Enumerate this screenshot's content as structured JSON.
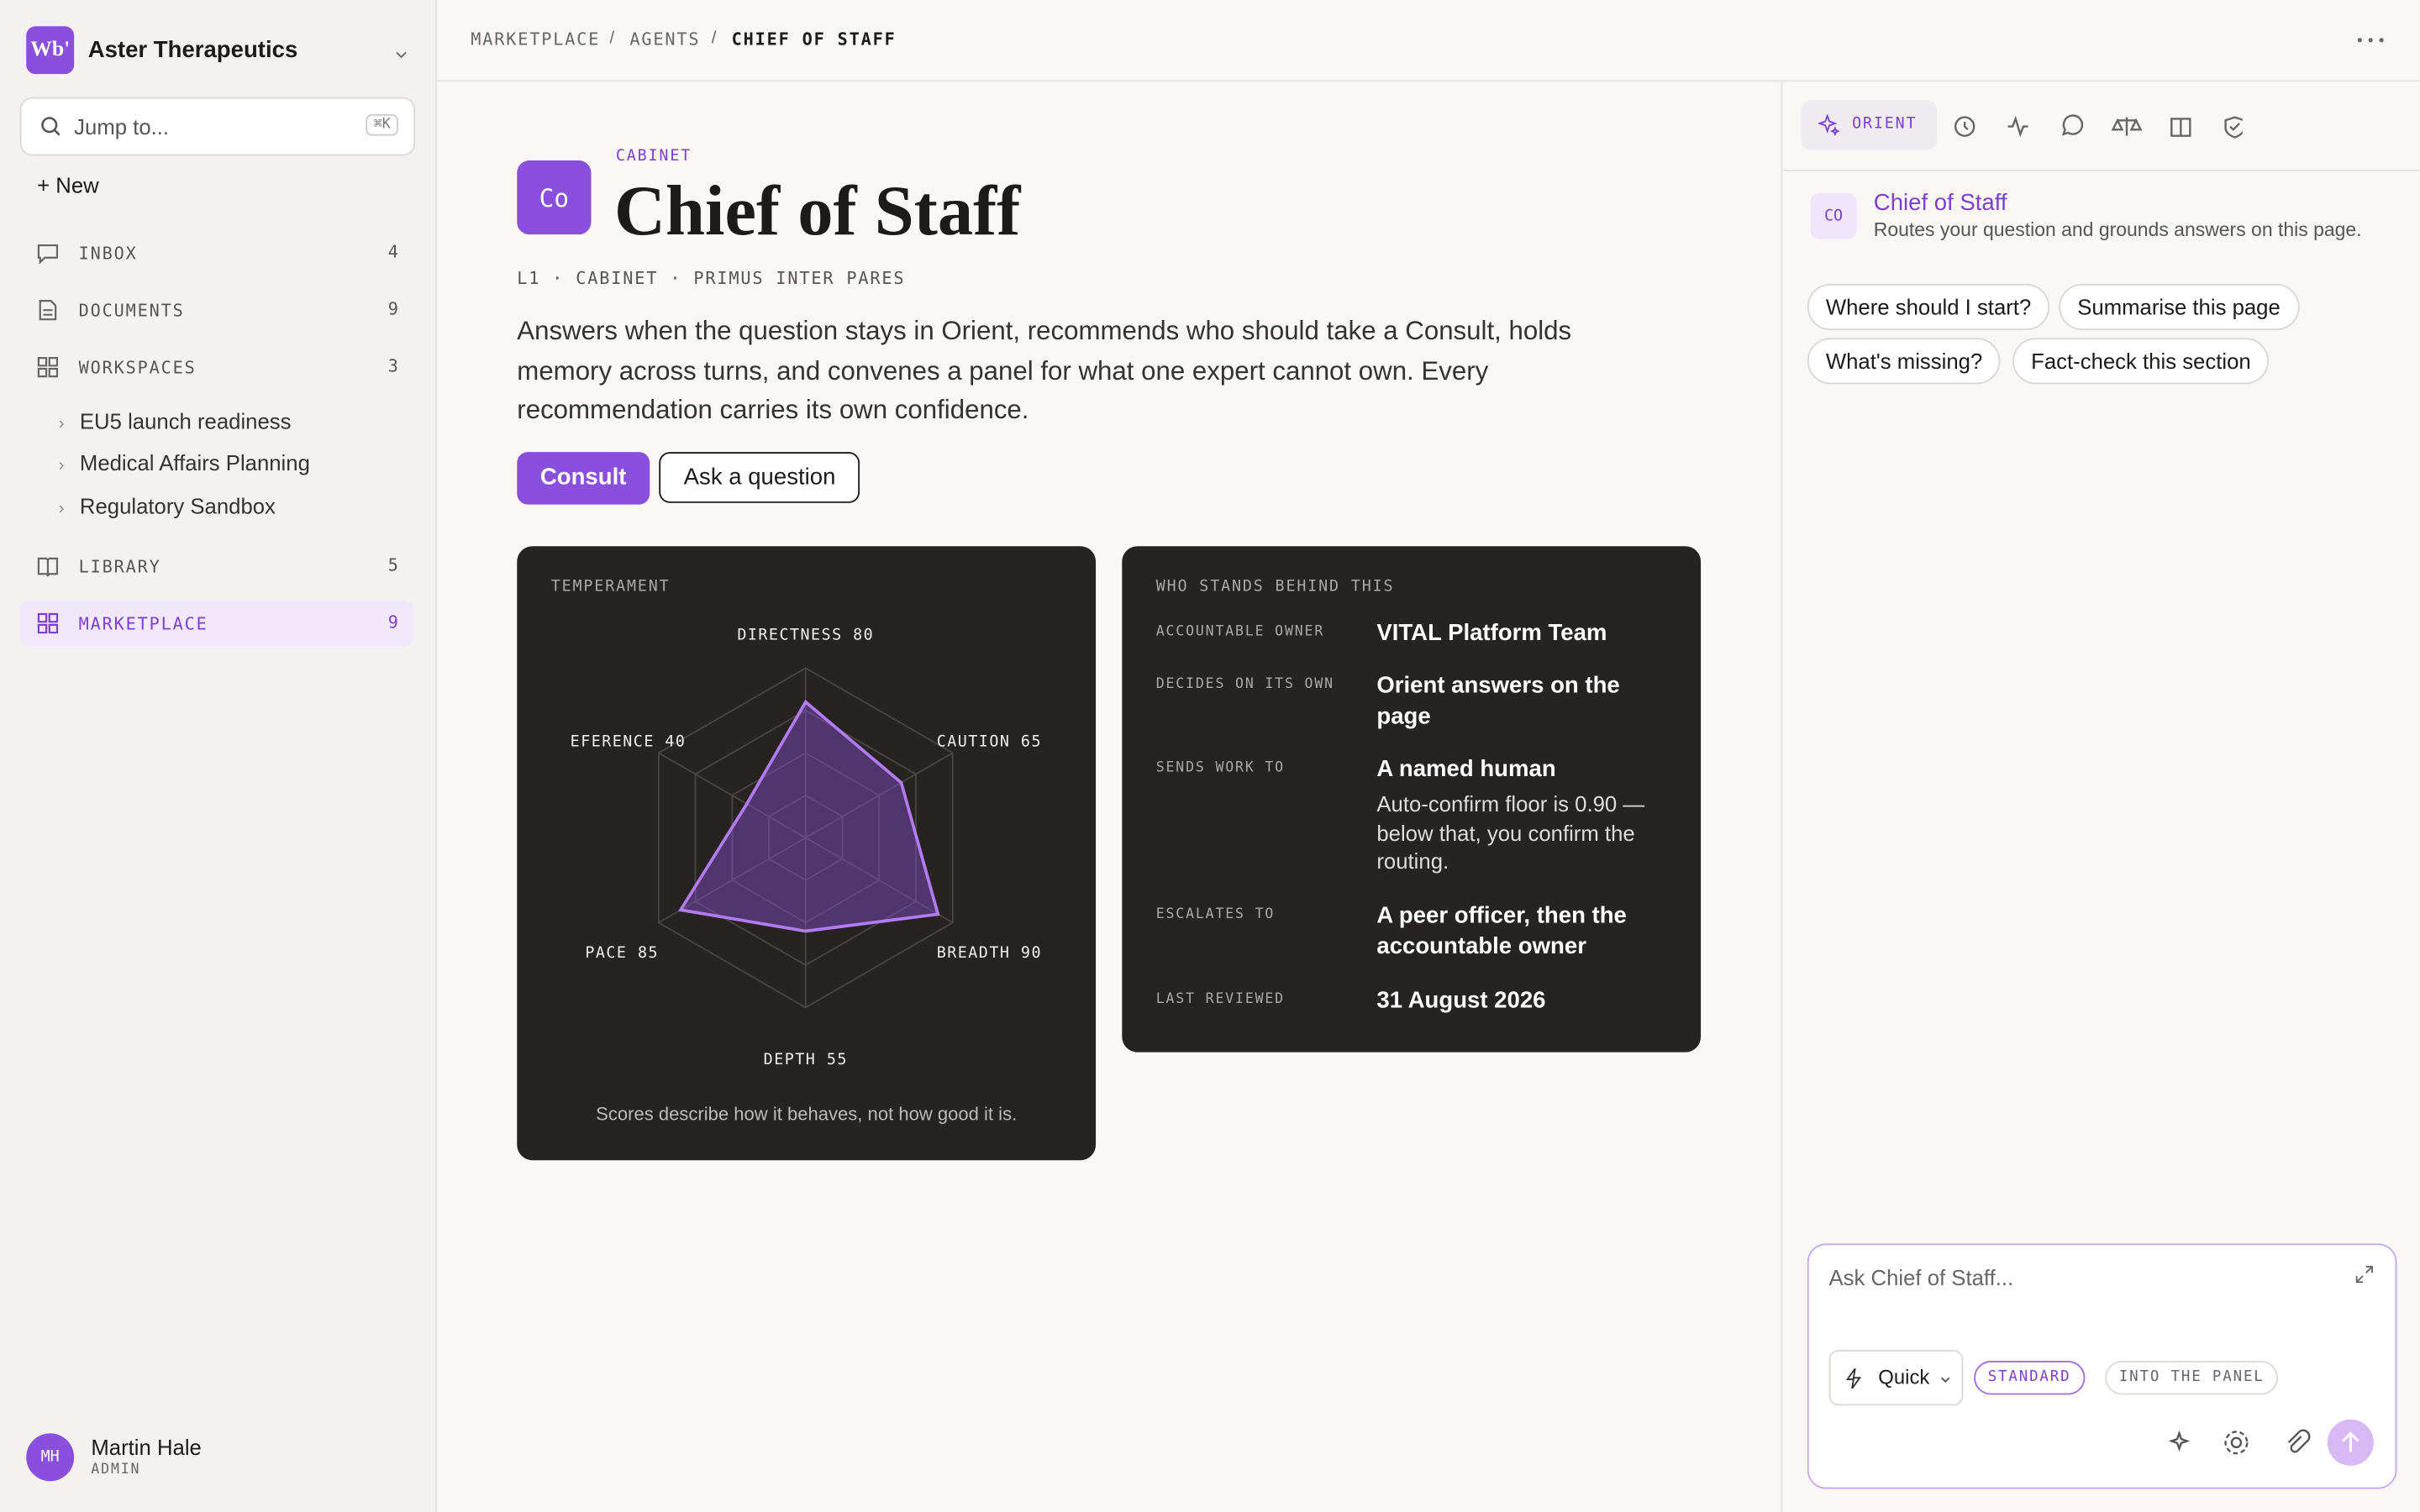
{
  "sidebar": {
    "logo": "Wb'",
    "org": "Aster Therapeutics",
    "search": "Jump to...",
    "shortcut": "⌘K",
    "new": "+ New",
    "nav": [
      {
        "label": "INBOX",
        "count": 4
      },
      {
        "label": "DOCUMENTS",
        "count": 9
      },
      {
        "label": "WORKSPACES",
        "count": 3
      }
    ],
    "workspaces": [
      "EU5 launch readiness",
      "Medical Affairs Planning",
      "Regulatory Sandbox"
    ],
    "nav2": [
      {
        "label": "LIBRARY",
        "count": 5
      },
      {
        "label": "MARKETPLACE",
        "count": 9
      }
    ],
    "user": {
      "initials": "MH",
      "name": "Martin Hale",
      "role": "ADMIN"
    }
  },
  "breadcrumb": [
    "MARKETPLACE",
    "AGENTS",
    "CHIEF OF STAFF"
  ],
  "page": {
    "avatar": "Co",
    "eyebrow": "CABINET",
    "title": "Chief of Staff",
    "meta": "L1 · CABINET · PRIMUS INTER PARES",
    "description": "Answers when the question stays in Orient, recommends who should take a Consult, holds memory across turns, and convenes a panel for what one expert cannot own. Every recommendation carries its own confidence.",
    "buttons": [
      "Consult",
      "Ask a question"
    ]
  },
  "temperament": {
    "title": "TEMPERAMENT",
    "max": 100,
    "axes": [
      {
        "label": "DIRECTNESS",
        "value": 80
      },
      {
        "label": "CAUTION",
        "value": 65
      },
      {
        "label": "BREADTH",
        "value": 90
      },
      {
        "label": "DEPTH",
        "value": 55
      },
      {
        "label": "PACE",
        "value": 85
      },
      {
        "label": "EFERENCE",
        "value": 40
      }
    ],
    "footnote": "Scores describe how it behaves, not how good it is."
  },
  "ownership": {
    "title": "WHO STANDS BEHIND THIS",
    "rows": [
      {
        "label": "ACCOUNTABLE OWNER",
        "value": "VITAL Platform Team"
      },
      {
        "label": "DECIDES ON ITS OWN",
        "value": "Orient answers on the page"
      },
      {
        "label": "SENDS WORK TO",
        "value": "A named human",
        "note": "Auto-confirm floor is 0.90 — below that, you confirm the routing."
      },
      {
        "label": "ESCALATES TO",
        "value": "A peer officer, then the accountable owner"
      },
      {
        "label": "LAST REVIEWED",
        "value": "31 August 2026"
      }
    ]
  },
  "panel": {
    "tab": "ORIENT",
    "agent": {
      "initials": "CO",
      "name": "Chief of Staff",
      "subtitle": "Routes your question and grounds answers on this page."
    },
    "suggestions": [
      "Where should I start?",
      "Summarise this page",
      "What's missing?",
      "Fact-check this section"
    ],
    "composer": {
      "placeholder": "Ask Chief of Staff...",
      "mode": "Quick",
      "options": [
        "STANDARD",
        "INTO THE PANEL"
      ]
    }
  }
}
